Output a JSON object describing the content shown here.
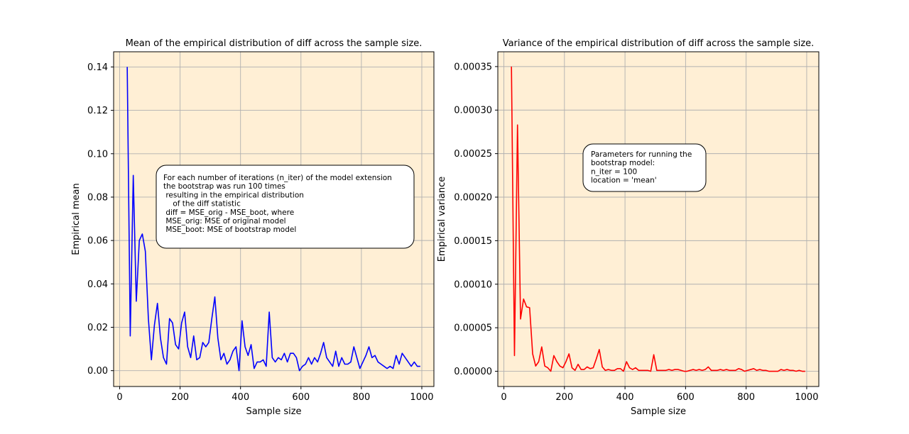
{
  "chart_data": [
    {
      "type": "line",
      "title": "Mean of the empirical distribution of diff across the sample size.",
      "xlabel": "Sample size",
      "ylabel": "Empirical mean",
      "xlim": [
        -20,
        1040
      ],
      "ylim": [
        -0.0073,
        0.147
      ],
      "x_ticks": [
        0,
        200,
        400,
        600,
        800,
        1000
      ],
      "y_ticks": [
        0.0,
        0.02,
        0.04,
        0.06,
        0.08,
        0.1,
        0.12,
        0.14
      ],
      "x_tick_labels": [
        "0",
        "200",
        "400",
        "600",
        "800",
        "1000"
      ],
      "y_tick_labels": [
        "0.00",
        "0.02",
        "0.04",
        "0.06",
        "0.08",
        "0.10",
        "0.12",
        "0.14"
      ],
      "grid": true,
      "background_color": "#ffefd5",
      "series": [
        {
          "color": "#0000ff",
          "x": [
            25,
            35,
            45,
            55,
            65,
            75,
            85,
            95,
            105,
            115,
            125,
            135,
            145,
            155,
            165,
            175,
            185,
            195,
            205,
            215,
            225,
            235,
            245,
            255,
            265,
            275,
            285,
            295,
            305,
            315,
            325,
            335,
            345,
            355,
            365,
            375,
            385,
            395,
            405,
            415,
            425,
            435,
            445,
            455,
            465,
            475,
            485,
            495,
            505,
            515,
            525,
            535,
            545,
            555,
            565,
            575,
            585,
            595,
            605,
            615,
            625,
            635,
            645,
            655,
            665,
            675,
            685,
            695,
            705,
            715,
            725,
            735,
            745,
            755,
            765,
            775,
            785,
            795,
            805,
            815,
            825,
            835,
            845,
            855,
            865,
            875,
            885,
            895,
            905,
            915,
            925,
            935,
            945,
            955,
            965,
            975,
            985,
            995
          ],
          "y": [
            0.14,
            0.016,
            0.09,
            0.032,
            0.06,
            0.063,
            0.055,
            0.024,
            0.005,
            0.021,
            0.031,
            0.015,
            0.006,
            0.003,
            0.024,
            0.022,
            0.012,
            0.01,
            0.022,
            0.027,
            0.011,
            0.006,
            0.016,
            0.005,
            0.006,
            0.013,
            0.011,
            0.013,
            0.024,
            0.034,
            0.015,
            0.005,
            0.008,
            0.003,
            0.005,
            0.009,
            0.011,
            0.0,
            0.023,
            0.011,
            0.007,
            0.012,
            0.001,
            0.004,
            0.004,
            0.005,
            0.002,
            0.027,
            0.006,
            0.004,
            0.006,
            0.005,
            0.008,
            0.004,
            0.008,
            0.008,
            0.006,
            0.0,
            0.002,
            0.003,
            0.006,
            0.003,
            0.006,
            0.004,
            0.008,
            0.013,
            0.006,
            0.004,
            0.002,
            0.009,
            0.002,
            0.006,
            0.003,
            0.003,
            0.004,
            0.011,
            0.006,
            0.001,
            0.004,
            0.007,
            0.011,
            0.006,
            0.007,
            0.004,
            0.003,
            0.002,
            0.001,
            0.002,
            0.001,
            0.007,
            0.003,
            0.008,
            0.006,
            0.004,
            0.002,
            0.004,
            0.002,
            0.002
          ]
        }
      ],
      "annotation": {
        "lines": [
          "For each number of iterations (n_iter) of the model extension",
          "the bootstrap was run 100 times",
          " resulting in the empirical distribution",
          "    of the diff statistic",
          " diff = MSE_orig - MSE_boot, where",
          " MSE_orig: MSE of original model",
          " MSE_boot: MSE of bootstrap model"
        ]
      }
    },
    {
      "type": "line",
      "title": "Variance of the empirical distribution of diff across the sample size.",
      "xlabel": "Sample size",
      "ylabel": "Empirical variance",
      "xlim": [
        -20,
        1040
      ],
      "ylim": [
        -1.75e-05,
        0.000367
      ],
      "x_ticks": [
        0,
        200,
        400,
        600,
        800,
        1000
      ],
      "y_ticks": [
        0.0,
        5e-05,
        0.0001,
        0.00015,
        0.0002,
        0.00025,
        0.0003,
        0.00035
      ],
      "x_tick_labels": [
        "0",
        "200",
        "400",
        "600",
        "800",
        "1000"
      ],
      "y_tick_labels": [
        "0.00000",
        "0.00005",
        "0.00010",
        "0.00015",
        "0.00020",
        "0.00025",
        "0.00030",
        "0.00035"
      ],
      "grid": true,
      "background_color": "#ffefd5",
      "series": [
        {
          "color": "#ff0000",
          "x": [
            25,
            35,
            45,
            55,
            65,
            75,
            85,
            95,
            105,
            115,
            125,
            135,
            145,
            155,
            165,
            175,
            185,
            195,
            205,
            215,
            225,
            235,
            245,
            255,
            265,
            275,
            285,
            295,
            305,
            315,
            325,
            335,
            345,
            355,
            365,
            375,
            385,
            395,
            405,
            415,
            425,
            435,
            445,
            455,
            465,
            475,
            485,
            495,
            505,
            515,
            525,
            535,
            545,
            555,
            565,
            575,
            585,
            595,
            605,
            615,
            625,
            635,
            645,
            655,
            665,
            675,
            685,
            695,
            705,
            715,
            725,
            735,
            745,
            755,
            765,
            775,
            785,
            795,
            805,
            815,
            825,
            835,
            845,
            855,
            865,
            875,
            885,
            895,
            905,
            915,
            925,
            935,
            945,
            955,
            965,
            975,
            985,
            995
          ],
          "y": [
            0.00035,
            1.8e-05,
            0.000283,
            6e-05,
            8.3e-05,
            7.4e-05,
            7.3e-05,
            2e-05,
            6e-06,
            1.1e-05,
            2.8e-05,
            6e-06,
            4e-06,
            0.0,
            1.8e-05,
            1.1e-05,
            6e-06,
            4e-06,
            1.1e-05,
            2e-05,
            4e-06,
            1e-06,
            8e-06,
            2e-06,
            2e-06,
            5e-06,
            3e-06,
            4e-06,
            1.4e-05,
            2.5e-05,
            5e-06,
            1e-06,
            2e-06,
            1e-06,
            1e-06,
            3e-06,
            3e-06,
            0.0,
            1.1e-05,
            4e-06,
            2e-06,
            4e-06,
            1e-06,
            1e-06,
            1e-06,
            1e-06,
            0.0,
            1.9e-05,
            1e-06,
            1e-06,
            1e-06,
            1e-06,
            2e-06,
            1e-06,
            2e-06,
            2e-06,
            1e-06,
            0.0,
            0.0,
            1e-06,
            2e-06,
            1e-06,
            2e-06,
            1e-06,
            2e-06,
            5e-06,
            1e-06,
            1e-06,
            1e-06,
            2e-06,
            1e-06,
            2e-06,
            1e-06,
            1e-06,
            1e-06,
            3e-06,
            2e-06,
            0.0,
            1e-06,
            2e-06,
            3e-06,
            1e-06,
            2e-06,
            1e-06,
            1e-06,
            0.0,
            0.0,
            0.0,
            0.0,
            2e-06,
            1e-06,
            2e-06,
            1e-06,
            1e-06,
            0.0,
            1e-06,
            0.0,
            0.0
          ]
        }
      ],
      "annotation": {
        "lines": [
          "Parameters for running the",
          "bootstrap model:",
          "n_iter = 100",
          "location = 'mean'"
        ]
      }
    }
  ]
}
